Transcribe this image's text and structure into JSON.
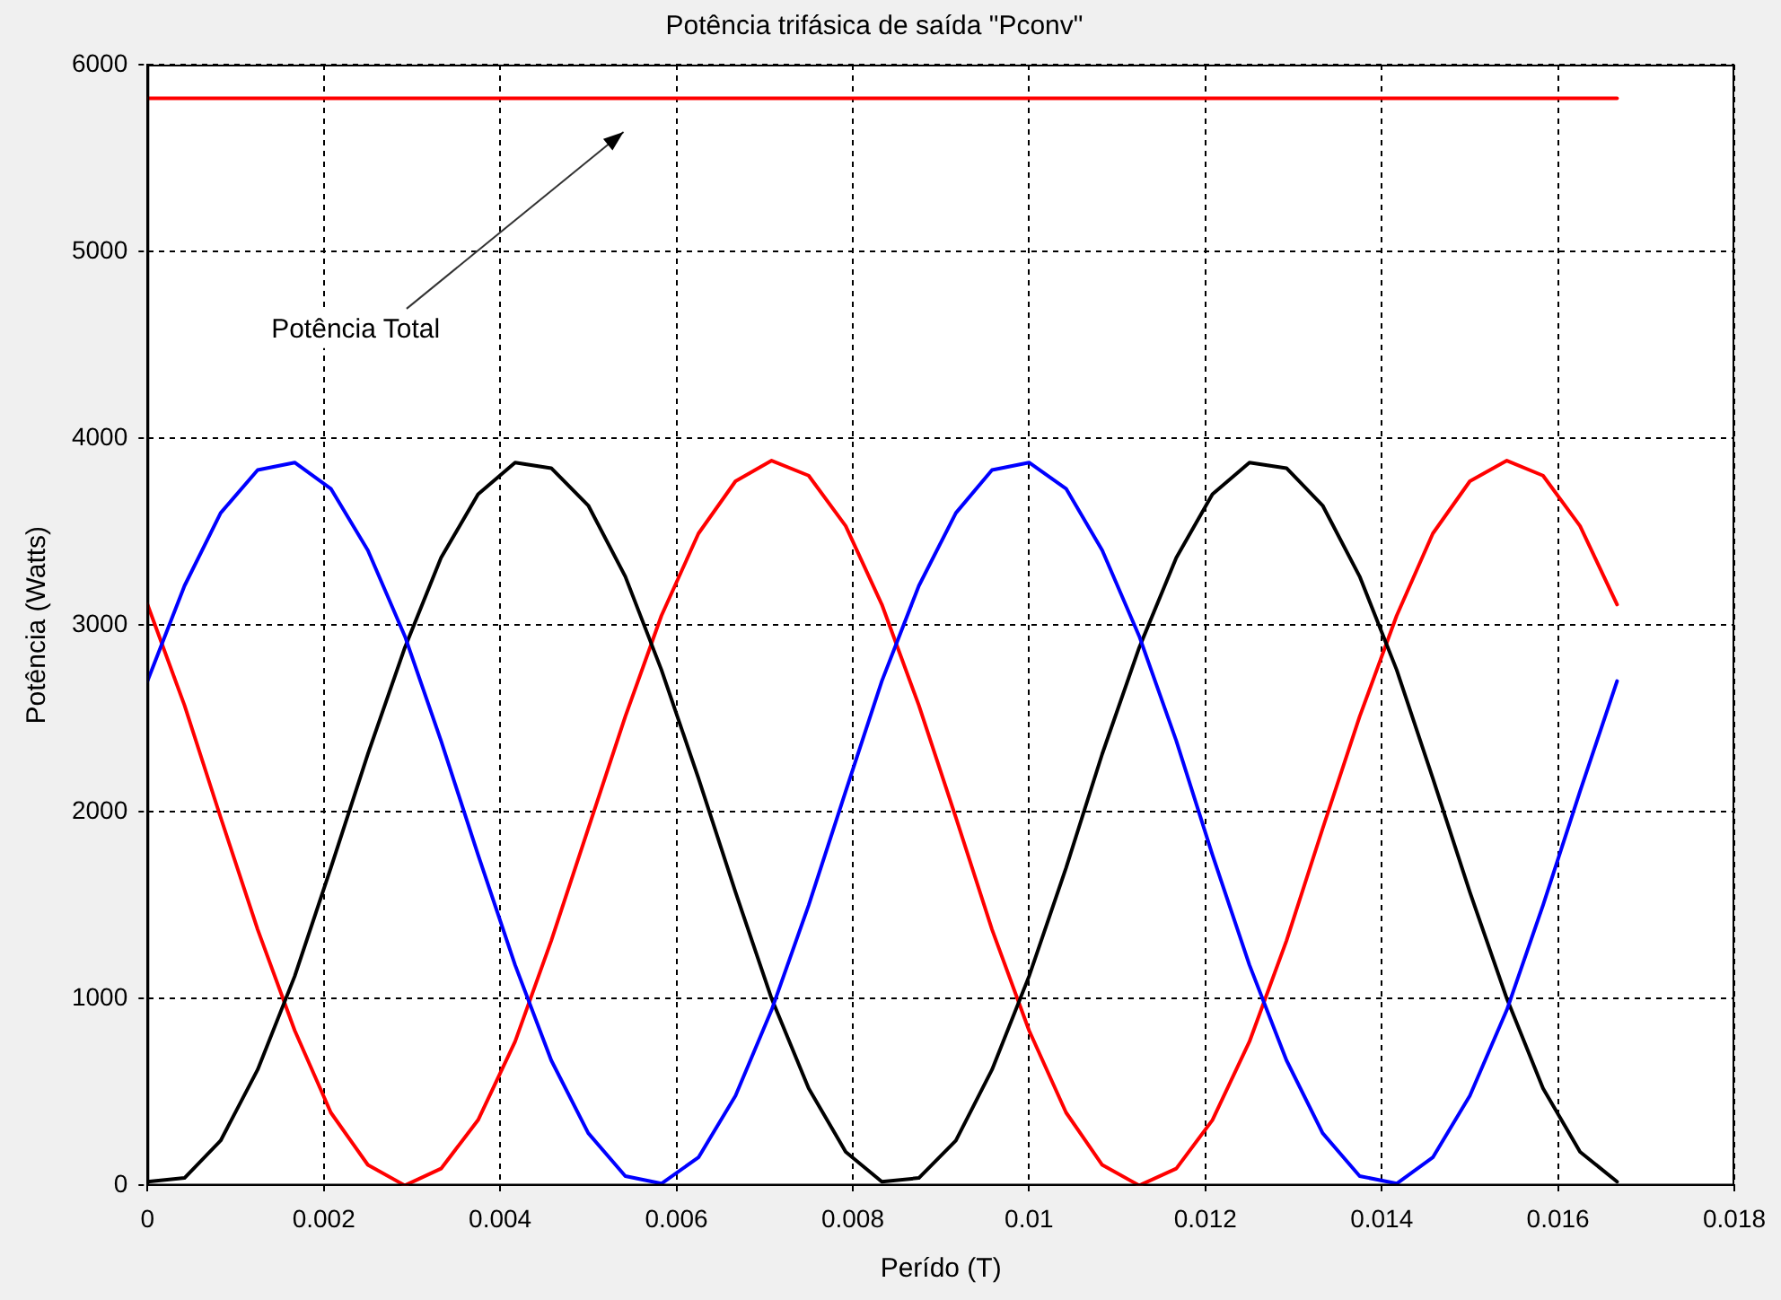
{
  "chart_data": {
    "type": "line",
    "title": "Potência trifásica de saída \"Pconv\"",
    "xlabel": "Perído (T)",
    "ylabel": "Potência (Watts)",
    "x": [
      0,
      0.00042,
      0.00083,
      0.00125,
      0.00167,
      0.00208,
      0.0025,
      0.00292,
      0.00333,
      0.00375,
      0.00417,
      0.00458,
      0.005,
      0.00542,
      0.00583,
      0.00625,
      0.00667,
      0.00708,
      0.0075,
      0.00792,
      0.00833,
      0.00875,
      0.00917,
      0.00958,
      0.01,
      0.01042,
      0.01083,
      0.01125,
      0.01167,
      0.01208,
      0.0125,
      0.01292,
      0.01333,
      0.01375,
      0.01417,
      0.01458,
      0.015,
      0.01542,
      0.01583,
      0.01625,
      0.01667
    ],
    "series": [
      {
        "color": "#0000ff",
        "values": [
          2700,
          3210,
          3600,
          3830,
          3870,
          3730,
          3400,
          2940,
          2380,
          1770,
          1180,
          670,
          280,
          50,
          10,
          150,
          480,
          940,
          1500,
          2110,
          2700,
          3210,
          3600,
          3830,
          3870,
          3730,
          3400,
          2940,
          2380,
          1770,
          1180,
          670,
          280,
          50,
          10,
          150,
          480,
          940,
          1500,
          2110,
          2700
        ]
      },
      {
        "color": "#000000",
        "values": [
          20,
          40,
          240,
          620,
          1120,
          1700,
          2310,
          2880,
          3360,
          3700,
          3870,
          3840,
          3640,
          3260,
          2760,
          2180,
          1570,
          1000,
          520,
          180,
          20,
          40,
          240,
          620,
          1120,
          1700,
          2310,
          2880,
          3360,
          3700,
          3870,
          3840,
          3640,
          3260,
          2760,
          2180,
          1570,
          1000,
          520,
          180,
          20
        ]
      },
      {
        "color": "#ff0000",
        "values": [
          3110,
          2570,
          1970,
          1370,
          830,
          390,
          110,
          0,
          90,
          350,
          770,
          1310,
          1910,
          2510,
          3050,
          3490,
          3770,
          3880,
          3800,
          3530,
          3110,
          2570,
          1970,
          1370,
          830,
          390,
          110,
          0,
          90,
          350,
          770,
          1310,
          1910,
          2510,
          3050,
          3490,
          3770,
          3880,
          3800,
          3530,
          3110
        ]
      },
      {
        "color": "#ff0000",
        "x": [
          0,
          0.01667
        ],
        "values": [
          5820,
          5820
        ]
      }
    ],
    "annotations": [
      "Potência Total"
    ],
    "xlim": [
      0,
      0.018
    ],
    "xticks": [
      0,
      0.002,
      0.004,
      0.006,
      0.008,
      0.01,
      0.012,
      0.014,
      0.016,
      0.018
    ],
    "ylim": [
      0,
      6000
    ],
    "yticks": [
      0,
      1000,
      2000,
      3000,
      4000,
      5000,
      6000
    ],
    "grid": true,
    "legend": false,
    "marker": "none",
    "line_style": "solid"
  }
}
